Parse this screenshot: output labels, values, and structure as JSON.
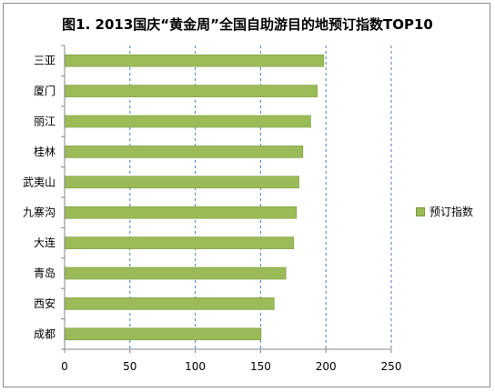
{
  "chart_data": {
    "type": "bar",
    "orientation": "horizontal",
    "title": "图1. 2013国庆“黄金周”全国自助游目的地预订指数TOP10",
    "categories": [
      "三亚",
      "厦门",
      "丽江",
      "桂林",
      "武夷山",
      "九寨沟",
      "大连",
      "青岛",
      "西安",
      "成都"
    ],
    "series": [
      {
        "name": "预订指数",
        "values": [
          198,
          193,
          188,
          182,
          179,
          177,
          175,
          169,
          160,
          150
        ]
      }
    ],
    "xlim": [
      0,
      250
    ],
    "xticks": [
      "0",
      "50",
      "100",
      "150",
      "200",
      "250"
    ],
    "grid": "vertical dashed",
    "legend_position": "right",
    "colors": {
      "bar": "#9bbb59",
      "bar_edge": "#7a9a3c",
      "grid": "#4a7ebb",
      "axis": "#868686"
    }
  }
}
